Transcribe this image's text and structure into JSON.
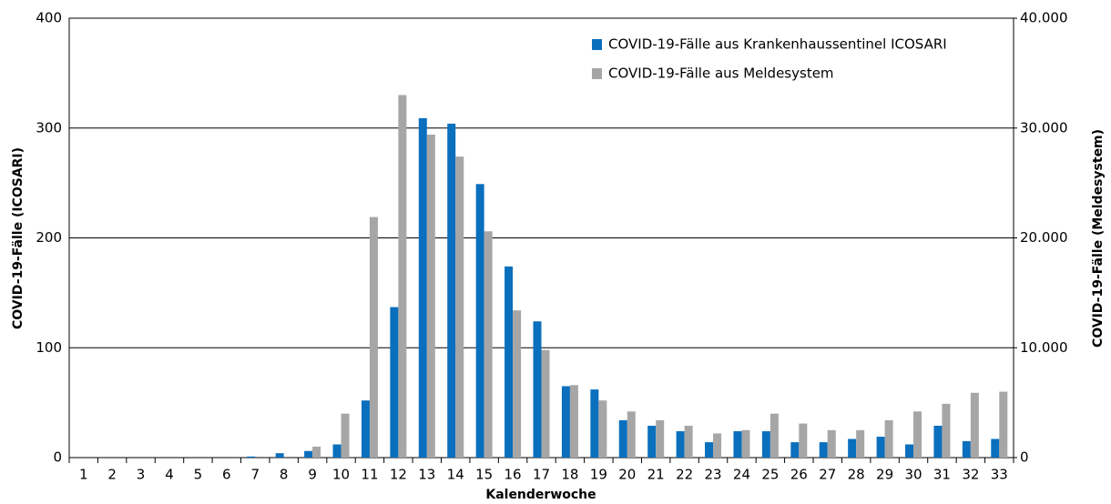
{
  "chart_data": {
    "type": "bar",
    "x_label": "Kalenderwoche",
    "y_label": "COVID-19-Fälle (ICOSARI)",
    "y2_label": "COVID-19-Fälle (Meldesystem)",
    "categories": [
      "1",
      "2",
      "3",
      "4",
      "5",
      "6",
      "7",
      "8",
      "9",
      "10",
      "11",
      "12",
      "13",
      "14",
      "15",
      "16",
      "17",
      "18",
      "19",
      "20",
      "21",
      "22",
      "23",
      "24",
      "25",
      "26",
      "27",
      "28",
      "29",
      "30",
      "31",
      "32",
      "33"
    ],
    "series": [
      {
        "name": "COVID-19-Fälle aus Krankenhaussentinel ICOSARI",
        "color": "#0a6fbd",
        "values": [
          0,
          0,
          0,
          0,
          0,
          0,
          1,
          4,
          6,
          12,
          52,
          137,
          309,
          304,
          249,
          174,
          124,
          65,
          62,
          34,
          29,
          24,
          14,
          24,
          24,
          14,
          14,
          17,
          19,
          12,
          29,
          15,
          17
        ]
      },
      {
        "name": "COVID-19-Fälle aus Meldesystem",
        "color": "#a6a6a6",
        "axis": "y2",
        "values": [
          0,
          0,
          0,
          0,
          0,
          0,
          0,
          0,
          1000,
          4000,
          21900,
          33000,
          29400,
          27400,
          20600,
          13400,
          9800,
          6600,
          5200,
          4200,
          3400,
          2900,
          2200,
          2500,
          4000,
          3100,
          2500,
          2500,
          3400,
          4200,
          4900,
          5900,
          6000
        ]
      }
    ],
    "ylim": [
      0,
      400
    ],
    "yticks": [
      0,
      100,
      200,
      300,
      400
    ],
    "y2lim": [
      0,
      40000
    ],
    "y2ticks": [
      0,
      {
        "value": 10000,
        "label": "10.000"
      },
      {
        "value": 20000,
        "label": "20.000"
      },
      {
        "value": 30000,
        "label": "30.000"
      },
      {
        "value": 40000,
        "label": "40.000"
      }
    ],
    "grid": true,
    "legend": "upper right"
  }
}
